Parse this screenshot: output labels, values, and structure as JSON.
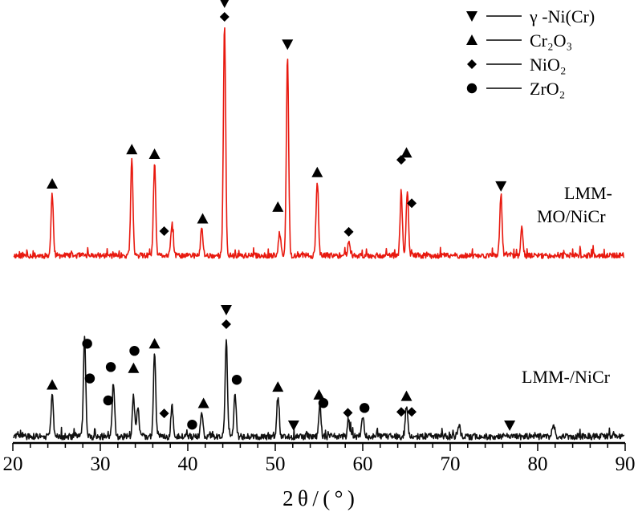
{
  "chart_data": {
    "type": "line",
    "title": "",
    "xlabel": "2 θ / ( ° )",
    "ylabel": "",
    "xlim": [
      20,
      90
    ],
    "xticks": [
      "20",
      "30",
      "40",
      "50",
      "60",
      "70",
      "80",
      "90"
    ],
    "grid": false,
    "legend_placement": "top-right",
    "legend": [
      {
        "marker": "triangle-down",
        "label": "γ -Ni(Cr)"
      },
      {
        "marker": "triangle-up",
        "label": "Cr₂O₃"
      },
      {
        "marker": "diamond",
        "label": "NiO₂"
      },
      {
        "marker": "circle",
        "label": "ZrO₂"
      }
    ],
    "series": [
      {
        "name": "LMM-MO/NiCr",
        "name_lines": [
          "LMM-",
          "MO/NiCr"
        ],
        "color": "#e8190f",
        "peaks_2theta": [
          24.5,
          33.6,
          36.2,
          38.2,
          41.6,
          44.2,
          50.5,
          51.4,
          54.8,
          58.4,
          64.4,
          65.1,
          75.8,
          78.2
        ],
        "peaks_height": [
          0.27,
          0.42,
          0.4,
          0.14,
          0.12,
          1.0,
          0.1,
          0.86,
          0.32,
          0.06,
          0.27,
          0.28,
          0.26,
          0.12
        ],
        "phase_markers": [
          {
            "phase": "Cr2O3",
            "x": 24.5
          },
          {
            "phase": "Cr2O3",
            "x": 33.6
          },
          {
            "phase": "Cr2O3",
            "x": 36.2
          },
          {
            "phase": "NiO2",
            "x": 37.3
          },
          {
            "phase": "Cr2O3",
            "x": 41.7
          },
          {
            "phase": "NiO2",
            "x": 44.2
          },
          {
            "phase": "Ni(Cr)",
            "x": 44.2
          },
          {
            "phase": "Cr2O3",
            "x": 50.3
          },
          {
            "phase": "Ni(Cr)",
            "x": 51.4
          },
          {
            "phase": "Cr2O3",
            "x": 54.8
          },
          {
            "phase": "NiO2",
            "x": 58.4
          },
          {
            "phase": "NiO2",
            "x": 64.4
          },
          {
            "phase": "NiO2",
            "x": 65.6
          },
          {
            "phase": "Cr2O3",
            "x": 65.0
          },
          {
            "phase": "Ni(Cr)",
            "x": 75.8
          }
        ]
      },
      {
        "name": "LMM-/NiCr",
        "name_lines": [
          "LMM-/NiCr"
        ],
        "color": "#111111",
        "peaks_2theta": [
          24.5,
          28.2,
          31.5,
          33.8,
          34.3,
          36.2,
          38.2,
          41.6,
          44.4,
          45.4,
          50.3,
          55.1,
          58.4,
          60.0,
          65.0,
          71.0,
          81.8
        ],
        "peaks_height": [
          0.41,
          0.97,
          0.53,
          0.39,
          0.3,
          0.81,
          0.3,
          0.25,
          0.94,
          0.44,
          0.39,
          0.32,
          0.14,
          0.2,
          0.3,
          0.12,
          0.13
        ],
        "phase_markers": [
          {
            "phase": "Cr2O3",
            "x": 24.5
          },
          {
            "phase": "ZrO2",
            "x": 28.5
          },
          {
            "phase": "ZrO2",
            "x": 28.8
          },
          {
            "phase": "ZrO2",
            "x": 30.9
          },
          {
            "phase": "ZrO2",
            "x": 31.2
          },
          {
            "phase": "Cr2O3",
            "x": 33.8
          },
          {
            "phase": "ZrO2",
            "x": 33.9
          },
          {
            "phase": "Cr2O3",
            "x": 36.2
          },
          {
            "phase": "NiO2",
            "x": 37.3
          },
          {
            "phase": "ZrO2",
            "x": 40.5
          },
          {
            "phase": "Cr2O3",
            "x": 41.8
          },
          {
            "phase": "NiO2",
            "x": 44.4
          },
          {
            "phase": "Ni(Cr)",
            "x": 44.4
          },
          {
            "phase": "ZrO2",
            "x": 45.6
          },
          {
            "phase": "Cr2O3",
            "x": 50.3
          },
          {
            "phase": "Ni(Cr)",
            "x": 52.1
          },
          {
            "phase": "Cr2O3",
            "x": 55.0
          },
          {
            "phase": "ZrO2",
            "x": 55.5
          },
          {
            "phase": "NiO2",
            "x": 58.3
          },
          {
            "phase": "ZrO2",
            "x": 60.2
          },
          {
            "phase": "NiO2",
            "x": 64.4
          },
          {
            "phase": "NiO2",
            "x": 65.6
          },
          {
            "phase": "Cr2O3",
            "x": 65.0
          },
          {
            "phase": "Ni(Cr)",
            "x": 76.8
          }
        ]
      }
    ]
  }
}
